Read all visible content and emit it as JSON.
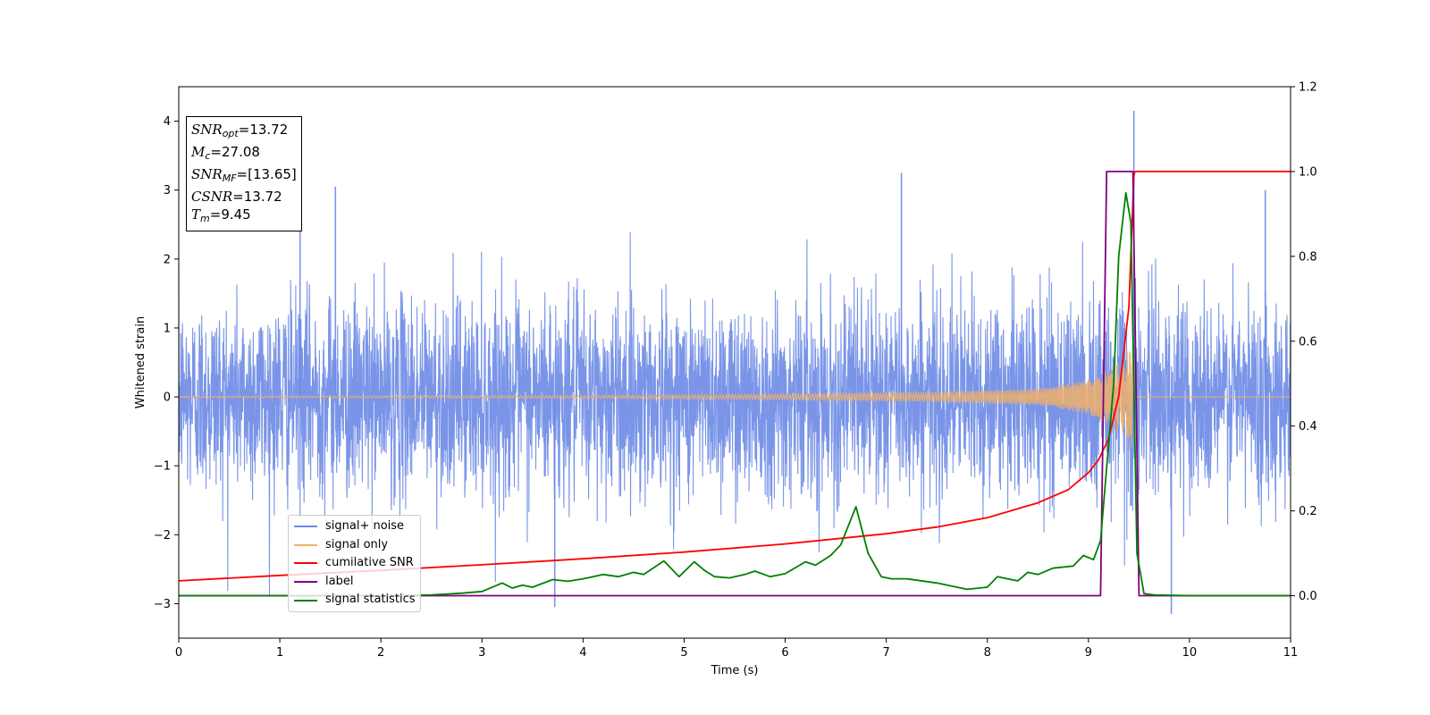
{
  "chart_data": {
    "type": "line",
    "xlabel": "Time (s)",
    "ylabel": "Whitened strain",
    "xlim": [
      0,
      11
    ],
    "ylim_left": [
      -3.5,
      4.5
    ],
    "ylim_right": [
      -0.1,
      1.2
    ],
    "x_ticks": [
      "0",
      "1",
      "2",
      "3",
      "4",
      "5",
      "6",
      "7",
      "8",
      "9",
      "10",
      "11"
    ],
    "y_ticks_left": [
      "−3",
      "−2",
      "−1",
      "0",
      "1",
      "2",
      "3",
      "4"
    ],
    "y_ticks_right": [
      "0.0",
      "0.2",
      "0.4",
      "0.6",
      "0.8",
      "1.0",
      "1.2"
    ],
    "grid": false,
    "legend_position": "lower-left",
    "annotation": {
      "snr_opt": "13.72",
      "mc": "27.08",
      "snr_mf": "[13.65]",
      "csnr": "13.72",
      "tm": "9.45"
    },
    "series": [
      {
        "name": "signal+ noise",
        "axis": "left",
        "color": "#6b8ae6",
        "description_range": [
          -3.1,
          4.2
        ],
        "notable_peaks": [
          [
            1.2,
            2.6
          ],
          [
            1.55,
            3.05
          ],
          [
            3.72,
            -3.05
          ],
          [
            7.15,
            3.25
          ],
          [
            9.45,
            4.15
          ],
          [
            9.82,
            -3.15
          ],
          [
            10.75,
            3.0
          ]
        ]
      },
      {
        "name": "signal only",
        "axis": "left",
        "color": "#f0b06a",
        "envelope": [
          [
            0,
            0.01
          ],
          [
            4,
            0.02
          ],
          [
            6,
            0.04
          ],
          [
            7.5,
            0.07
          ],
          [
            8.5,
            0.12
          ],
          [
            9.0,
            0.25
          ],
          [
            9.2,
            0.4
          ],
          [
            9.35,
            0.6
          ],
          [
            9.43,
            0.75
          ],
          [
            9.45,
            0.0
          ],
          [
            11,
            0.0
          ]
        ]
      },
      {
        "name": "cumilative SNR",
        "axis": "right",
        "color": "#ff0000",
        "x": [
          0,
          1,
          2,
          3,
          4,
          5,
          6,
          7,
          7.5,
          8,
          8.5,
          8.8,
          9.0,
          9.1,
          9.2,
          9.3,
          9.4,
          9.45,
          9.46,
          10,
          11
        ],
        "y": [
          0.035,
          0.048,
          0.06,
          0.073,
          0.087,
          0.103,
          0.122,
          0.146,
          0.162,
          0.184,
          0.219,
          0.25,
          0.29,
          0.32,
          0.37,
          0.47,
          0.68,
          0.99,
          1.0,
          1.0,
          1.0
        ]
      },
      {
        "name": "label",
        "axis": "right",
        "color": "#800080",
        "x": [
          0,
          9.12,
          9.18,
          9.44,
          9.5,
          11
        ],
        "y": [
          0,
          0,
          1,
          1,
          0,
          0
        ]
      },
      {
        "name": "signal statistics",
        "axis": "right",
        "color": "#008000",
        "x": [
          0,
          0.5,
          1,
          1.5,
          2,
          2.5,
          2.8,
          3.0,
          3.2,
          3.3,
          3.4,
          3.5,
          3.7,
          3.85,
          4.0,
          4.1,
          4.2,
          4.35,
          4.5,
          4.6,
          4.8,
          4.95,
          5.1,
          5.2,
          5.3,
          5.45,
          5.6,
          5.7,
          5.85,
          6.0,
          6.2,
          6.3,
          6.45,
          6.55,
          6.7,
          6.82,
          6.95,
          7.05,
          7.2,
          7.5,
          7.8,
          8.0,
          8.1,
          8.2,
          8.3,
          8.4,
          8.5,
          8.65,
          8.85,
          8.95,
          9.05,
          9.12,
          9.25,
          9.3,
          9.37,
          9.42,
          9.48,
          9.55,
          9.65,
          10,
          11
        ],
        "y": [
          0.0,
          0.0,
          0.0,
          0.0,
          0.0,
          0.002,
          0.006,
          0.01,
          0.03,
          0.018,
          0.025,
          0.02,
          0.038,
          0.034,
          0.04,
          0.045,
          0.05,
          0.045,
          0.055,
          0.05,
          0.082,
          0.045,
          0.08,
          0.06,
          0.045,
          0.042,
          0.05,
          0.058,
          0.045,
          0.052,
          0.08,
          0.072,
          0.095,
          0.12,
          0.21,
          0.1,
          0.045,
          0.04,
          0.04,
          0.03,
          0.015,
          0.02,
          0.045,
          0.04,
          0.035,
          0.055,
          0.05,
          0.065,
          0.07,
          0.095,
          0.085,
          0.13,
          0.5,
          0.8,
          0.95,
          0.88,
          0.1,
          0.005,
          0.002,
          0.0,
          0.0
        ]
      }
    ]
  }
}
